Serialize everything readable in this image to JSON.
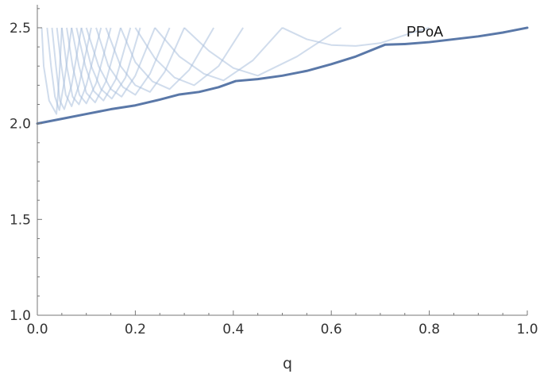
{
  "chart_data": {
    "type": "line",
    "title": "",
    "xlabel": "q",
    "ylabel": "",
    "xlim": [
      0.0,
      1.0
    ],
    "ylim": [
      1.0,
      2.62
    ],
    "x_ticks": [
      0.0,
      0.2,
      0.4,
      0.6,
      0.8,
      1.0
    ],
    "x_tick_labels": [
      "0.0",
      "0.2",
      "0.4",
      "0.6",
      "0.8",
      "1.0"
    ],
    "y_ticks": [
      1.0,
      1.5,
      2.0,
      2.5
    ],
    "y_tick_labels": [
      "1.0",
      "1.5",
      "2.0",
      "2.5"
    ],
    "grid": false,
    "annotation": "PPoA",
    "colors": {
      "main": "#5a78a8",
      "background_curves": "#a9bfdc",
      "frame": "#777777"
    },
    "series": [
      {
        "name": "PPoA",
        "points": [
          [
            0.0,
            2.0
          ],
          [
            0.05,
            2.025
          ],
          [
            0.1,
            2.05
          ],
          [
            0.15,
            2.075
          ],
          [
            0.175,
            2.085
          ],
          [
            0.2,
            2.095
          ],
          [
            0.25,
            2.125
          ],
          [
            0.29,
            2.152
          ],
          [
            0.33,
            2.165
          ],
          [
            0.37,
            2.19
          ],
          [
            0.405,
            2.222
          ],
          [
            0.45,
            2.232
          ],
          [
            0.5,
            2.25
          ],
          [
            0.55,
            2.275
          ],
          [
            0.6,
            2.31
          ],
          [
            0.65,
            2.35
          ],
          [
            0.71,
            2.412
          ],
          [
            0.75,
            2.415
          ],
          [
            0.8,
            2.425
          ],
          [
            0.85,
            2.44
          ],
          [
            0.9,
            2.455
          ],
          [
            0.95,
            2.475
          ],
          [
            1.0,
            2.5
          ]
        ]
      }
    ],
    "background_curves": [
      {
        "points": [
          [
            0.009,
            2.5
          ],
          [
            0.013,
            2.3
          ],
          [
            0.024,
            2.12
          ],
          [
            0.039,
            2.05
          ],
          [
            0.045,
            2.25
          ],
          [
            0.05,
            2.5
          ]
        ]
      },
      {
        "points": [
          [
            0.02,
            2.5
          ],
          [
            0.028,
            2.3
          ],
          [
            0.036,
            2.14
          ],
          [
            0.045,
            2.07
          ],
          [
            0.055,
            2.22
          ],
          [
            0.07,
            2.5
          ]
        ]
      },
      {
        "points": [
          [
            0.03,
            2.5
          ],
          [
            0.038,
            2.3
          ],
          [
            0.046,
            2.12
          ],
          [
            0.055,
            2.075
          ],
          [
            0.07,
            2.2
          ],
          [
            0.09,
            2.5
          ]
        ]
      },
      {
        "points": [
          [
            0.04,
            2.5
          ],
          [
            0.048,
            2.32
          ],
          [
            0.058,
            2.15
          ],
          [
            0.07,
            2.09
          ],
          [
            0.085,
            2.2
          ],
          [
            0.11,
            2.5
          ]
        ]
      },
      {
        "points": [
          [
            0.05,
            2.5
          ],
          [
            0.06,
            2.3
          ],
          [
            0.072,
            2.14
          ],
          [
            0.085,
            2.1
          ],
          [
            0.1,
            2.2
          ],
          [
            0.13,
            2.5
          ]
        ]
      },
      {
        "points": [
          [
            0.06,
            2.5
          ],
          [
            0.072,
            2.3
          ],
          [
            0.086,
            2.15
          ],
          [
            0.1,
            2.105
          ],
          [
            0.12,
            2.21
          ],
          [
            0.15,
            2.5
          ]
        ]
      },
      {
        "points": [
          [
            0.07,
            2.5
          ],
          [
            0.085,
            2.3
          ],
          [
            0.1,
            2.16
          ],
          [
            0.118,
            2.11
          ],
          [
            0.14,
            2.22
          ],
          [
            0.17,
            2.5
          ]
        ]
      },
      {
        "points": [
          [
            0.08,
            2.5
          ],
          [
            0.098,
            2.3
          ],
          [
            0.115,
            2.17
          ],
          [
            0.135,
            2.12
          ],
          [
            0.16,
            2.23
          ],
          [
            0.19,
            2.5
          ]
        ]
      },
      {
        "points": [
          [
            0.09,
            2.5
          ],
          [
            0.11,
            2.3
          ],
          [
            0.13,
            2.18
          ],
          [
            0.152,
            2.13
          ],
          [
            0.18,
            2.24
          ],
          [
            0.21,
            2.5
          ]
        ]
      },
      {
        "points": [
          [
            0.1,
            2.5
          ],
          [
            0.125,
            2.3
          ],
          [
            0.15,
            2.18
          ],
          [
            0.172,
            2.14
          ],
          [
            0.2,
            2.25
          ],
          [
            0.24,
            2.5
          ]
        ]
      },
      {
        "points": [
          [
            0.12,
            2.5
          ],
          [
            0.145,
            2.3
          ],
          [
            0.175,
            2.19
          ],
          [
            0.2,
            2.15
          ],
          [
            0.23,
            2.26
          ],
          [
            0.27,
            2.5
          ]
        ]
      },
      {
        "points": [
          [
            0.14,
            2.5
          ],
          [
            0.17,
            2.3
          ],
          [
            0.2,
            2.2
          ],
          [
            0.23,
            2.165
          ],
          [
            0.26,
            2.27
          ],
          [
            0.3,
            2.5
          ]
        ]
      },
      {
        "points": [
          [
            0.17,
            2.5
          ],
          [
            0.2,
            2.32
          ],
          [
            0.235,
            2.22
          ],
          [
            0.27,
            2.18
          ],
          [
            0.31,
            2.28
          ],
          [
            0.36,
            2.5
          ]
        ]
      },
      {
        "points": [
          [
            0.2,
            2.5
          ],
          [
            0.24,
            2.34
          ],
          [
            0.28,
            2.24
          ],
          [
            0.32,
            2.2
          ],
          [
            0.37,
            2.3
          ],
          [
            0.42,
            2.5
          ]
        ]
      },
      {
        "points": [
          [
            0.24,
            2.5
          ],
          [
            0.29,
            2.35
          ],
          [
            0.34,
            2.26
          ],
          [
            0.38,
            2.225
          ],
          [
            0.44,
            2.33
          ],
          [
            0.5,
            2.5
          ]
        ]
      },
      {
        "points": [
          [
            0.3,
            2.5
          ],
          [
            0.35,
            2.38
          ],
          [
            0.4,
            2.29
          ],
          [
            0.45,
            2.25
          ],
          [
            0.53,
            2.35
          ],
          [
            0.62,
            2.5
          ]
        ]
      },
      {
        "points": [
          [
            0.5,
            2.5
          ],
          [
            0.55,
            2.44
          ],
          [
            0.6,
            2.41
          ],
          [
            0.65,
            2.405
          ],
          [
            0.7,
            2.42
          ],
          [
            0.76,
            2.47
          ],
          [
            0.8,
            2.5
          ]
        ]
      }
    ]
  }
}
